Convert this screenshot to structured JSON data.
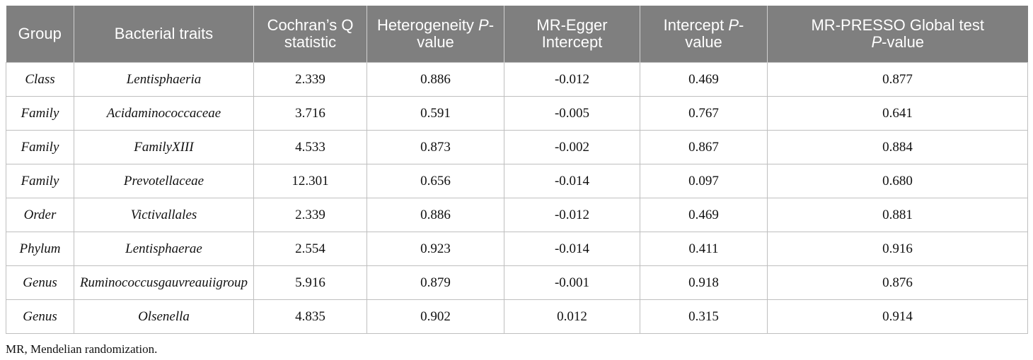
{
  "table": {
    "headers": {
      "group": "Group",
      "bacterial_traits": "Bacterial traits",
      "cochran_q_line1": "Cochran’s Q",
      "cochran_q_line2": "statistic",
      "heterogeneity_line1": "Heterogeneity ",
      "heterogeneity_p": "P",
      "heterogeneity_line1_suffix": "-",
      "heterogeneity_line2": "value",
      "egger_line1": "MR-Egger",
      "egger_line2": "Intercept",
      "intercept_p_line1": "Intercept ",
      "intercept_p_p": "P",
      "intercept_p_line1_suffix": "-",
      "intercept_p_line2": "value",
      "presso_line1": "MR-PRESSO Global test",
      "presso_p": "P",
      "presso_line2_suffix": "-value"
    },
    "rows": [
      {
        "group": "Class",
        "trait": "Lentisphaeria",
        "q": "2.339",
        "het_p": "0.886",
        "egger": "-0.012",
        "int_p": "0.469",
        "presso_p": "0.877"
      },
      {
        "group": "Family",
        "trait": "Acidaminococcaceae",
        "q": "3.716",
        "het_p": "0.591",
        "egger": "-0.005",
        "int_p": "0.767",
        "presso_p": "0.641"
      },
      {
        "group": "Family",
        "trait": "FamilyXIII",
        "q": "4.533",
        "het_p": "0.873",
        "egger": "-0.002",
        "int_p": "0.867",
        "presso_p": "0.884"
      },
      {
        "group": "Family",
        "trait": "Prevotellaceae",
        "q": "12.301",
        "het_p": "0.656",
        "egger": "-0.014",
        "int_p": "0.097",
        "presso_p": "0.680"
      },
      {
        "group": "Order",
        "trait": "Victivallales",
        "q": "2.339",
        "het_p": "0.886",
        "egger": "-0.012",
        "int_p": "0.469",
        "presso_p": "0.881"
      },
      {
        "group": "Phylum",
        "trait": "Lentisphaerae",
        "q": "2.554",
        "het_p": "0.923",
        "egger": "-0.014",
        "int_p": "0.411",
        "presso_p": "0.916"
      },
      {
        "group": "Genus",
        "trait": "Ruminococcusgauvreauiigroup",
        "q": "5.916",
        "het_p": "0.879",
        "egger": "-0.001",
        "int_p": "0.918",
        "presso_p": "0.876"
      },
      {
        "group": "Genus",
        "trait": "Olsenella",
        "q": "4.835",
        "het_p": "0.902",
        "egger": "0.012",
        "int_p": "0.315",
        "presso_p": "0.914"
      }
    ]
  },
  "footnote": "MR, Mendelian randomization."
}
